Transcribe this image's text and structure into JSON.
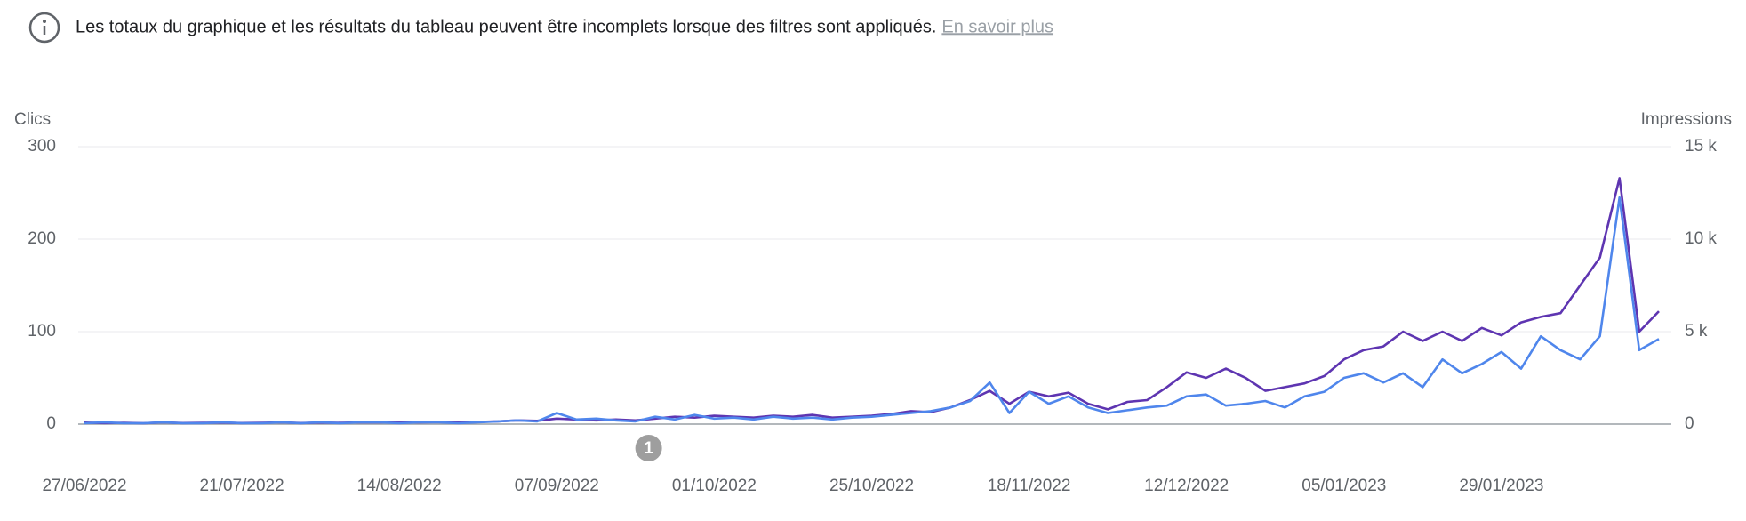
{
  "notice": {
    "text": "Les totaux du graphique et les résultats du tableau peuvent être incomplets lorsque des filtres sont appliqués.",
    "link": "En savoir plus"
  },
  "chart_data": {
    "type": "line",
    "y_label": "Clics",
    "y2_label": "Impressions",
    "x": [
      "27/06/2022",
      "30/06/2022",
      "03/07/2022",
      "06/07/2022",
      "09/07/2022",
      "12/07/2022",
      "15/07/2022",
      "18/07/2022",
      "21/07/2022",
      "24/07/2022",
      "27/07/2022",
      "30/07/2022",
      "02/08/2022",
      "05/08/2022",
      "08/08/2022",
      "11/08/2022",
      "14/08/2022",
      "17/08/2022",
      "20/08/2022",
      "23/08/2022",
      "26/08/2022",
      "29/08/2022",
      "01/09/2022",
      "04/09/2022",
      "07/09/2022",
      "10/09/2022",
      "13/09/2022",
      "16/09/2022",
      "19/09/2022",
      "22/09/2022",
      "25/09/2022",
      "28/09/2022",
      "01/10/2022",
      "04/10/2022",
      "07/10/2022",
      "10/10/2022",
      "13/10/2022",
      "16/10/2022",
      "19/10/2022",
      "22/10/2022",
      "25/10/2022",
      "28/10/2022",
      "31/10/2022",
      "03/11/2022",
      "06/11/2022",
      "09/11/2022",
      "12/11/2022",
      "15/11/2022",
      "18/11/2022",
      "21/11/2022",
      "24/11/2022",
      "27/11/2022",
      "30/11/2022",
      "03/12/2022",
      "06/12/2022",
      "09/12/2022",
      "12/12/2022",
      "15/12/2022",
      "18/12/2022",
      "21/12/2022",
      "24/12/2022",
      "27/12/2022",
      "30/12/2022",
      "02/01/2023",
      "05/01/2023",
      "08/01/2023",
      "11/01/2023",
      "14/01/2023",
      "17/01/2023",
      "20/01/2023",
      "23/01/2023",
      "26/01/2023",
      "29/01/2023",
      "01/02/2023",
      "04/02/2023",
      "07/02/2023",
      "10/02/2023",
      "13/02/2023",
      "16/02/2023",
      "19/02/2023",
      "22/02/2023"
    ],
    "series": [
      {
        "name": "Clics",
        "color": "#4f86ec",
        "axis": "y",
        "values": [
          1,
          2,
          1,
          1,
          2,
          1,
          1,
          2,
          1,
          1,
          2,
          1,
          2,
          1,
          2,
          2,
          1,
          2,
          2,
          1,
          2,
          3,
          4,
          3,
          12,
          5,
          6,
          4,
          3,
          8,
          5,
          10,
          6,
          7,
          5,
          8,
          6,
          7,
          5,
          7,
          8,
          10,
          12,
          14,
          18,
          25,
          45,
          12,
          35,
          22,
          30,
          18,
          12,
          15,
          18,
          20,
          30,
          32,
          20,
          22,
          25,
          18,
          30,
          35,
          50,
          55,
          45,
          55,
          40,
          70,
          55,
          65,
          78,
          60,
          95,
          80,
          70,
          95,
          245,
          80,
          92
        ]
      },
      {
        "name": "Impressions",
        "color": "#5e35b1",
        "axis": "y2",
        "values": [
          80,
          60,
          70,
          50,
          90,
          60,
          70,
          80,
          60,
          70,
          90,
          60,
          80,
          70,
          90,
          100,
          80,
          90,
          110,
          100,
          120,
          150,
          200,
          180,
          300,
          250,
          200,
          250,
          200,
          300,
          400,
          350,
          450,
          400,
          350,
          450,
          400,
          500,
          350,
          400,
          450,
          550,
          700,
          650,
          900,
          1300,
          1800,
          1100,
          1750,
          1500,
          1700,
          1100,
          800,
          1200,
          1300,
          2000,
          2800,
          2500,
          3000,
          2500,
          1800,
          2000,
          2200,
          2600,
          3500,
          4000,
          4200,
          5000,
          4500,
          5000,
          4500,
          5200,
          4800,
          5500,
          5800,
          6000,
          7500,
          9000,
          13300,
          5000,
          6100
        ]
      }
    ],
    "xlim": [
      "27/06/2022",
      "22/02/2023"
    ],
    "xticks": [
      "27/06/2022",
      "21/07/2022",
      "14/08/2022",
      "07/09/2022",
      "01/10/2022",
      "25/10/2022",
      "18/11/2022",
      "12/12/2022",
      "05/01/2023",
      "29/01/2023"
    ],
    "ylim": [
      0,
      300
    ],
    "yticks": [
      0,
      100,
      200,
      300
    ],
    "y2lim": [
      0,
      15000
    ],
    "y2ticks": [
      0,
      {
        "value": 5000,
        "label": "5 k"
      },
      {
        "value": 10000,
        "label": "10 k"
      },
      {
        "value": 15000,
        "label": "15 k"
      }
    ],
    "grid": true,
    "annotations": [
      {
        "label": "1",
        "x": "21/09/2022"
      }
    ]
  }
}
